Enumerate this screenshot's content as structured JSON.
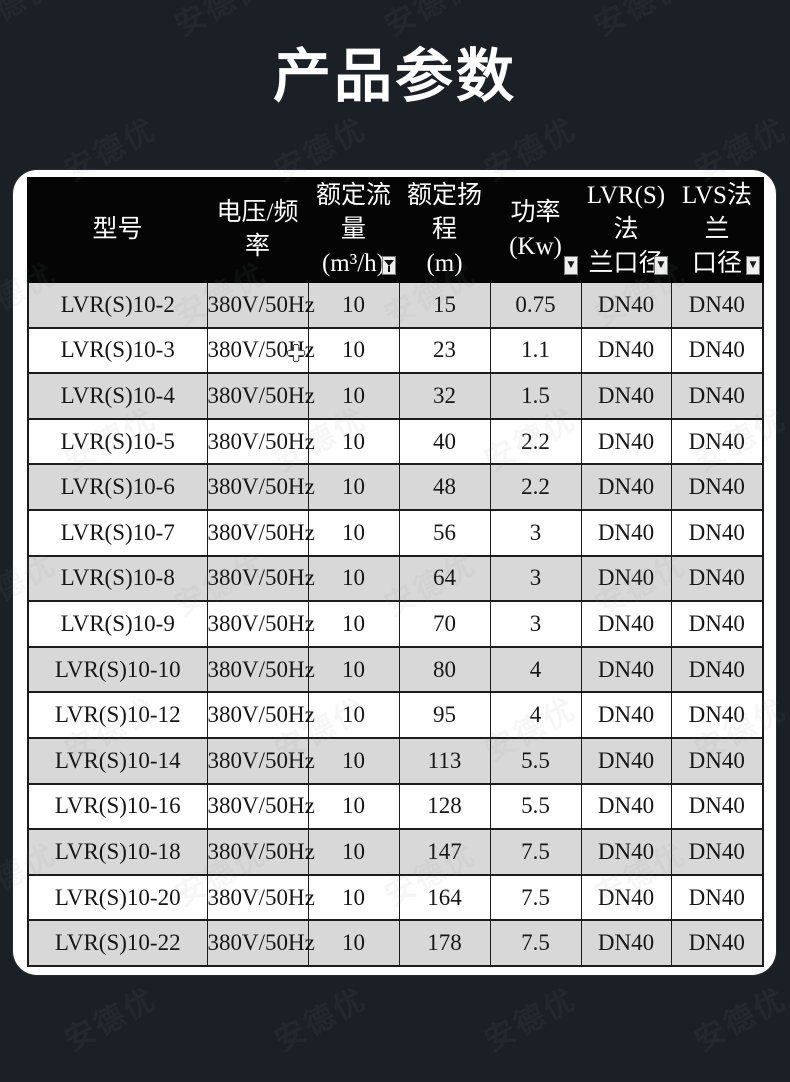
{
  "page": {
    "title": "产品参数",
    "watermark_text": "安德优"
  },
  "colors": {
    "background": "#1b2026",
    "card": "#ffffff",
    "header_bg": "#050505",
    "header_text": "#ffffff",
    "row_shaded": "#d8d8d8",
    "row_plain": "#ffffff",
    "grid_border": "#1c1c1c",
    "cell_text": "#161616"
  },
  "icons": {
    "filter_funnel": "funnel-filter-icon",
    "filter_arrow": "dropdown-arrow-icon",
    "cell_cursor": "excel-plus-cursor",
    "arrow_glyph": "▼",
    "cursor_glyph": "✚"
  },
  "table": {
    "columns": [
      {
        "id": "model",
        "lines": [
          "型号"
        ],
        "filter": "none"
      },
      {
        "id": "voltage",
        "lines": [
          "电压/频率"
        ],
        "filter": "none"
      },
      {
        "id": "flow",
        "lines": [
          "额定流量",
          "(m³/h)"
        ],
        "filter": "funnel"
      },
      {
        "id": "head",
        "lines": [
          "额定扬程",
          "(m)"
        ],
        "filter": "none"
      },
      {
        "id": "power",
        "lines": [
          "功率",
          "(Kw)"
        ],
        "filter": "arrow"
      },
      {
        "id": "lvr",
        "lines": [
          "LVR(S)法",
          "兰口径"
        ],
        "filter": "arrow"
      },
      {
        "id": "lvs",
        "lines": [
          "LVS法兰",
          "口径"
        ],
        "filter": "arrow"
      }
    ],
    "rows": [
      [
        "LVR(S)10-2",
        "380V/50Hz",
        "10",
        "15",
        "0.75",
        "DN40",
        "DN40"
      ],
      [
        "LVR(S)10-3",
        "380V/50Hz",
        "10",
        "23",
        "1.1",
        "DN40",
        "DN40"
      ],
      [
        "LVR(S)10-4",
        "380V/50Hz",
        "10",
        "32",
        "1.5",
        "DN40",
        "DN40"
      ],
      [
        "LVR(S)10-5",
        "380V/50Hz",
        "10",
        "40",
        "2.2",
        "DN40",
        "DN40"
      ],
      [
        "LVR(S)10-6",
        "380V/50Hz",
        "10",
        "48",
        "2.2",
        "DN40",
        "DN40"
      ],
      [
        "LVR(S)10-7",
        "380V/50Hz",
        "10",
        "56",
        "3",
        "DN40",
        "DN40"
      ],
      [
        "LVR(S)10-8",
        "380V/50Hz",
        "10",
        "64",
        "3",
        "DN40",
        "DN40"
      ],
      [
        "LVR(S)10-9",
        "380V/50Hz",
        "10",
        "70",
        "3",
        "DN40",
        "DN40"
      ],
      [
        "LVR(S)10-10",
        "380V/50Hz",
        "10",
        "80",
        "4",
        "DN40",
        "DN40"
      ],
      [
        "LVR(S)10-12",
        "380V/50Hz",
        "10",
        "95",
        "4",
        "DN40",
        "DN40"
      ],
      [
        "LVR(S)10-14",
        "380V/50Hz",
        "10",
        "113",
        "5.5",
        "DN40",
        "DN40"
      ],
      [
        "LVR(S)10-16",
        "380V/50Hz",
        "10",
        "128",
        "5.5",
        "DN40",
        "DN40"
      ],
      [
        "LVR(S)10-18",
        "380V/50Hz",
        "10",
        "147",
        "7.5",
        "DN40",
        "DN40"
      ],
      [
        "LVR(S)10-20",
        "380V/50Hz",
        "10",
        "164",
        "7.5",
        "DN40",
        "DN40"
      ],
      [
        "LVR(S)10-22",
        "380V/50Hz",
        "10",
        "178",
        "7.5",
        "DN40",
        "DN40"
      ]
    ]
  }
}
